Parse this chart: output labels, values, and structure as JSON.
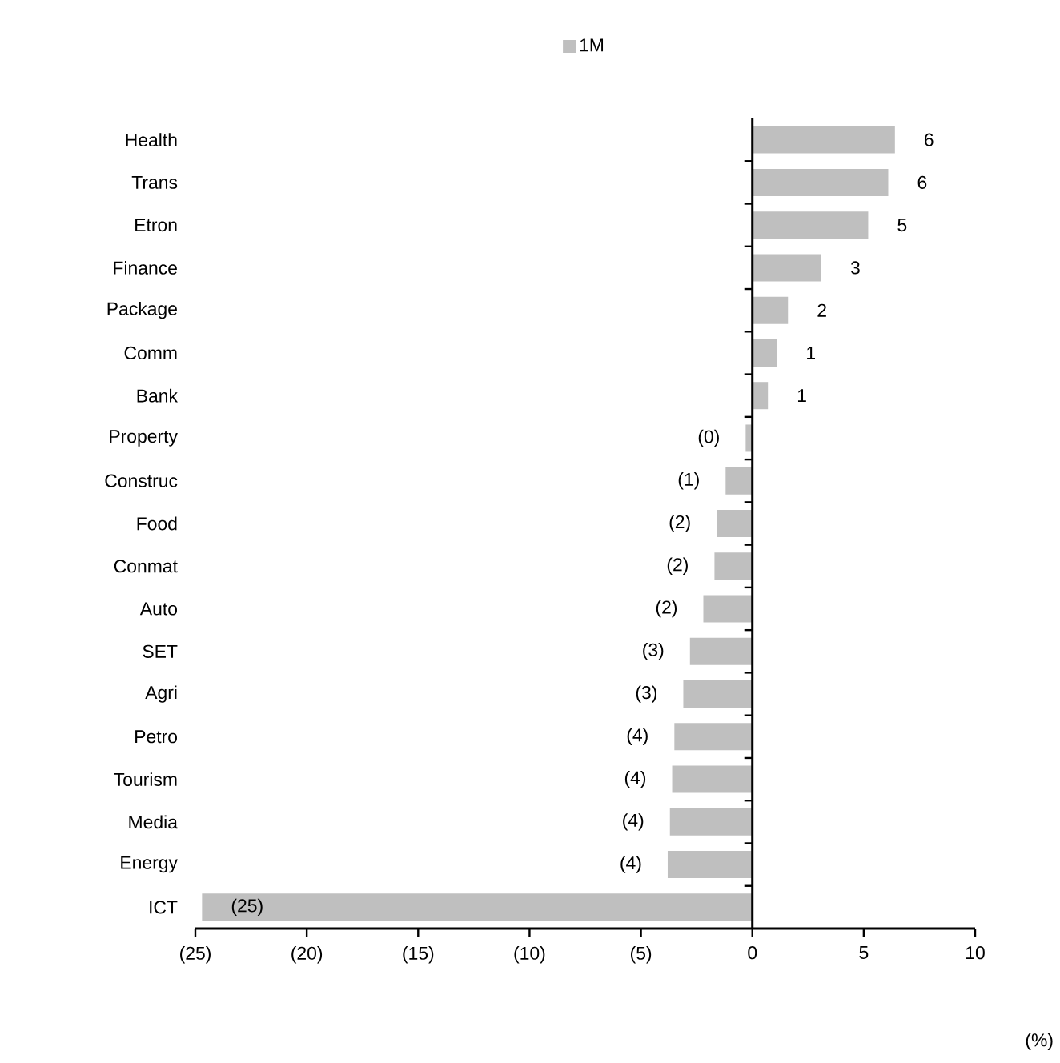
{
  "chart_data": {
    "type": "bar",
    "orientation": "horizontal",
    "categories": [
      "Health",
      "Trans",
      "Etron",
      "Finance",
      "Package",
      "Comm",
      "Bank",
      "Property",
      "Construc",
      "Food",
      "Conmat",
      "Auto",
      "SET",
      "Agri",
      "Petro",
      "Tourism",
      "Media",
      "Energy",
      "ICT"
    ],
    "series": [
      {
        "name": "1M",
        "color": "#bfbfbf",
        "values": [
          6.4,
          6.1,
          5.2,
          3.1,
          1.6,
          1.1,
          0.7,
          -0.3,
          -1.2,
          -1.6,
          -1.7,
          -2.2,
          -2.8,
          -3.1,
          -3.5,
          -3.6,
          -3.7,
          -3.8,
          -24.7
        ],
        "value_labels": [
          "6",
          "6",
          "5",
          "3",
          "2",
          "1",
          "1",
          "(0)",
          "(1)",
          "(2)",
          "(2)",
          "(2)",
          "(3)",
          "(3)",
          "(4)",
          "(4)",
          "(4)",
          "(4)",
          "(25)"
        ]
      }
    ],
    "xlim": [
      -25,
      10
    ],
    "xticks": [
      {
        "value": -25,
        "label": "(25)"
      },
      {
        "value": -20,
        "label": "(20)"
      },
      {
        "value": -15,
        "label": "(15)"
      },
      {
        "value": -10,
        "label": "(10)"
      },
      {
        "value": -5,
        "label": "(5)"
      },
      0,
      5,
      10
    ],
    "legend": "top",
    "grid": false,
    "ref_lines": [
      {
        "axis": "x",
        "value": 0,
        "color": "#000000",
        "line_style": "solid"
      }
    ],
    "annotations": [
      "(%)"
    ]
  }
}
